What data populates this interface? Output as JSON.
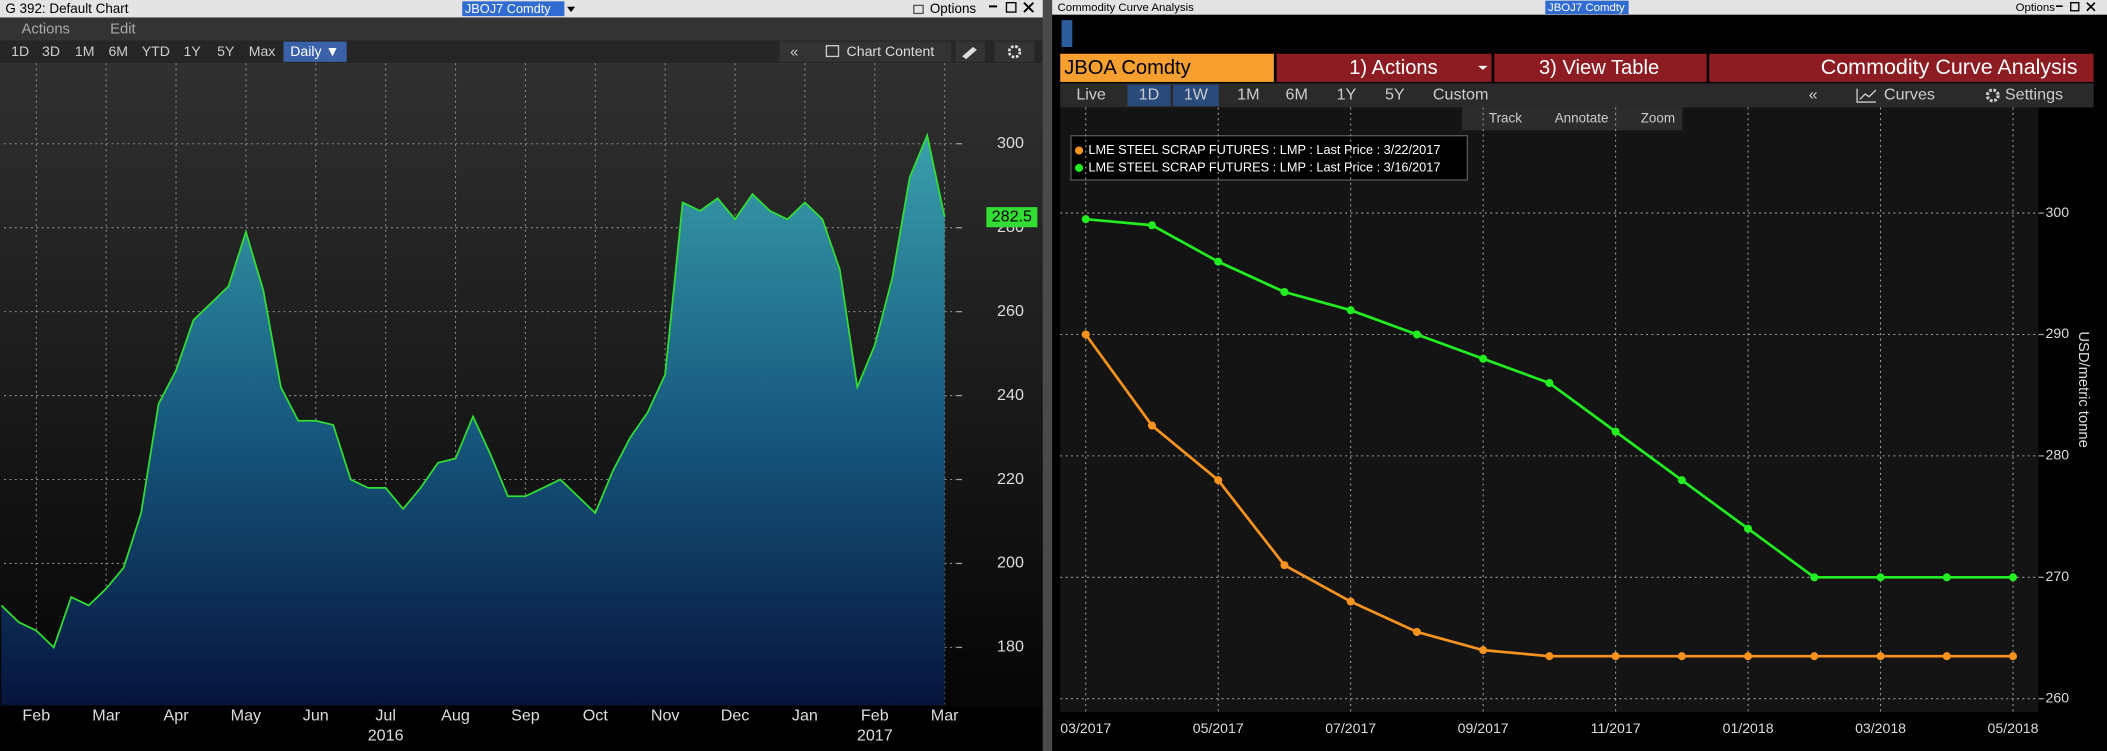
{
  "ui": {
    "left": {
      "window_title": "G 392: Default Chart",
      "ticker": "JBOJ7 Comdty",
      "options": "Options",
      "menu": [
        "Actions",
        "Edit"
      ],
      "ranges": [
        "1D",
        "3D",
        "1M",
        "6M",
        "YTD",
        "1Y",
        "5Y",
        "Max"
      ],
      "frequency": "Daily ▼",
      "collapse": "«",
      "chart_content": "Chart Content"
    },
    "right": {
      "window_title": "Commodity Curve Analysis",
      "ticker": "JBOJ7 Comdty",
      "options": "Options",
      "security": "JBOA Comdty",
      "actions": "1) Actions",
      "view_table": "3) View Table",
      "function_title": "Commodity Curve Analysis",
      "ranges": [
        "Live",
        "1D",
        "1W",
        "1M",
        "6M",
        "1Y",
        "5Y",
        "Custom"
      ],
      "collapse": "«",
      "curves": "Curves",
      "settings": "Settings",
      "tools": [
        "Track",
        "Annotate",
        "Zoom"
      ]
    }
  },
  "chart_data": [
    {
      "type": "area",
      "color": "#33dd33",
      "categories": [
        null,
        null,
        "Feb",
        null,
        null,
        null,
        "Mar",
        null,
        null,
        null,
        "Apr",
        null,
        null,
        null,
        "May",
        null,
        null,
        null,
        "Jun",
        null,
        null,
        null,
        "Jul",
        null,
        null,
        null,
        "Aug",
        null,
        null,
        null,
        "Sep",
        null,
        null,
        null,
        "Oct",
        null,
        null,
        null,
        "Nov",
        null,
        null,
        null,
        "Dec",
        null,
        null,
        null,
        "Jan",
        null,
        null,
        null,
        "Feb",
        null,
        null,
        null,
        "Mar"
      ],
      "year_labels": [
        "2016",
        "2017"
      ],
      "values": [
        190,
        186,
        184,
        180,
        192,
        190,
        194,
        199,
        212,
        238,
        246,
        258,
        262,
        266,
        279,
        265,
        242,
        234,
        234,
        233,
        220,
        218,
        218,
        213,
        218,
        224,
        225,
        235,
        226,
        216,
        216,
        218,
        220,
        216,
        212,
        222,
        230,
        236,
        245,
        286,
        284,
        287,
        282,
        288,
        284,
        282,
        286,
        282,
        270,
        242,
        252,
        268,
        292,
        302,
        282.5
      ],
      "ylim": [
        166.2,
        319.2
      ],
      "yticks": [
        180,
        200,
        220,
        240,
        260,
        280,
        300
      ],
      "grid": true
    },
    {
      "type": "line",
      "y_label": "USD/metric tonne",
      "grid": true,
      "categories": [
        "03/2017",
        null,
        "05/2017",
        null,
        "07/2017",
        null,
        "09/2017",
        null,
        "11/2017",
        null,
        "01/2018",
        null,
        "03/2018",
        null,
        "05/2018"
      ],
      "series": [
        {
          "name": "LME STEEL SCRAP FUTURES : LMP : Last Price : 3/22/2017",
          "color": "#f7931e",
          "values": [
            290,
            282.5,
            278,
            271,
            268,
            265.5,
            264,
            263.5,
            263.5,
            263.5,
            263.5,
            263.5,
            263.5,
            263.5,
            263.5
          ]
        },
        {
          "name": "LME STEEL SCRAP FUTURES : LMP : Last Price : 3/16/2017",
          "color": "#22ee22",
          "values": [
            299.5,
            299,
            296,
            293.5,
            292,
            290,
            288,
            286,
            282,
            278,
            274,
            270,
            270,
            270,
            270
          ]
        }
      ],
      "ylim": [
        258.9,
        308.7
      ],
      "yticks": [
        260,
        270,
        280,
        290,
        300
      ]
    }
  ]
}
